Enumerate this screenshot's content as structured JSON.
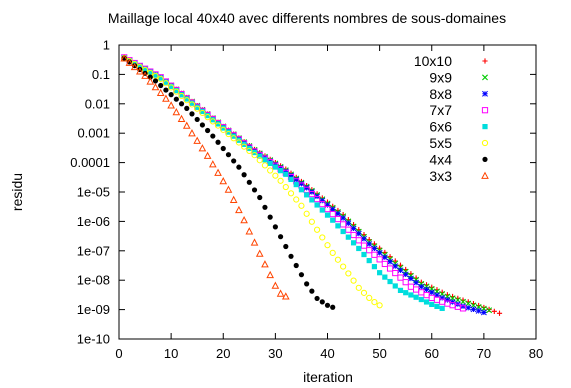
{
  "chart_data": {
    "type": "scatter",
    "title": "Maillage local 40x40 avec differents nombres de sous-domaines",
    "xlabel": "iteration",
    "ylabel": "residu",
    "xlim": [
      0,
      80
    ],
    "ylim": [
      1e-10,
      1
    ],
    "yscale": "log",
    "x_ticks": [
      "0",
      "10",
      "20",
      "30",
      "40",
      "50",
      "60",
      "70",
      "80"
    ],
    "y_ticks": [
      "1e-10",
      "1e-09",
      "1e-08",
      "1e-07",
      "1e-06",
      "1e-05",
      "0.0001",
      "0.001",
      "0.01",
      "0.1",
      "1"
    ],
    "grid": false,
    "legend_position": "top-right",
    "series": [
      {
        "name": "10x10",
        "color": "#ff0000",
        "marker": "plus",
        "points": [
          [
            1,
            0.38
          ],
          [
            8,
            0.08
          ],
          [
            14,
            0.012
          ],
          [
            20,
            0.0017
          ],
          [
            26,
            0.00028
          ],
          [
            32,
            6e-05
          ],
          [
            37,
            1.2e-05
          ],
          [
            43,
            1.7e-06
          ],
          [
            48,
            2.4e-07
          ],
          [
            53,
            4.5e-08
          ],
          [
            58,
            8.5e-09
          ],
          [
            63,
            3.2e-09
          ],
          [
            68,
            1.6e-09
          ],
          [
            73,
            7.5e-10
          ]
        ]
      },
      {
        "name": "9x9",
        "color": "#00cc00",
        "marker": "x",
        "points": [
          [
            1,
            0.38
          ],
          [
            8,
            0.08
          ],
          [
            14,
            0.012
          ],
          [
            20,
            0.0017
          ],
          [
            26,
            0.00027
          ],
          [
            32,
            5.5e-05
          ],
          [
            37,
            1.1e-05
          ],
          [
            43,
            1.5e-06
          ],
          [
            48,
            2e-07
          ],
          [
            53,
            3.7e-08
          ],
          [
            58,
            7.5e-09
          ],
          [
            63,
            2.8e-09
          ],
          [
            68,
            1.4e-09
          ],
          [
            71,
            9.5e-10
          ]
        ]
      },
      {
        "name": "8x8",
        "color": "#0000ff",
        "marker": "star",
        "points": [
          [
            1,
            0.38
          ],
          [
            8,
            0.08
          ],
          [
            14,
            0.011
          ],
          [
            20,
            0.0016
          ],
          [
            26,
            0.00025
          ],
          [
            32,
            5e-05
          ],
          [
            37,
            1e-05
          ],
          [
            43,
            1.3e-06
          ],
          [
            48,
            1.7e-07
          ],
          [
            53,
            3e-08
          ],
          [
            58,
            6e-09
          ],
          [
            62,
            2.5e-09
          ],
          [
            66,
            1.3e-09
          ],
          [
            70,
            8e-10
          ]
        ]
      },
      {
        "name": "7x7",
        "color": "#ff00ff",
        "marker": "square",
        "points": [
          [
            1,
            0.38
          ],
          [
            8,
            0.08
          ],
          [
            14,
            0.011
          ],
          [
            20,
            0.0016
          ],
          [
            26,
            0.00024
          ],
          [
            32,
            4.5e-05
          ],
          [
            37,
            8.5e-06
          ],
          [
            42,
            1.2e-06
          ],
          [
            47,
            1.5e-07
          ],
          [
            52,
            2.5e-08
          ],
          [
            56,
            6e-09
          ],
          [
            60,
            2.5e-09
          ],
          [
            63,
            1.6e-09
          ],
          [
            66,
            1.1e-09
          ]
        ]
      },
      {
        "name": "6x6",
        "color": "#00dddd",
        "marker": "filled-square",
        "points": [
          [
            1,
            0.37
          ],
          [
            8,
            0.075
          ],
          [
            14,
            0.0105
          ],
          [
            20,
            0.0015
          ],
          [
            26,
            0.00022
          ],
          [
            32,
            4e-05
          ],
          [
            36,
            8e-06
          ],
          [
            41,
            1.1e-06
          ],
          [
            46,
            1.2e-07
          ],
          [
            50,
            1.8e-08
          ],
          [
            54,
            4.5e-09
          ],
          [
            58,
            2.2e-09
          ],
          [
            60,
            1.5e-09
          ],
          [
            62,
            1.1e-09
          ]
        ]
      },
      {
        "name": "5x5",
        "color": "#ffff00",
        "marker": "circle",
        "points": [
          [
            1,
            0.36
          ],
          [
            8,
            0.07
          ],
          [
            14,
            0.0095
          ],
          [
            20,
            0.0013
          ],
          [
            26,
            0.00018
          ],
          [
            31,
            2.4e-05
          ],
          [
            35,
            3.4e-06
          ],
          [
            38,
            5.2e-07
          ],
          [
            41,
            8.5e-08
          ],
          [
            44,
            1.7e-08
          ],
          [
            46,
            5.5e-09
          ],
          [
            48,
            2.5e-09
          ],
          [
            49,
            1.8e-09
          ],
          [
            50,
            1.4e-09
          ]
        ]
      },
      {
        "name": "4x4",
        "color": "#000000",
        "marker": "filled-circle",
        "points": [
          [
            1,
            0.36
          ],
          [
            7,
            0.06
          ],
          [
            13,
            0.007
          ],
          [
            18,
            0.0008
          ],
          [
            23,
            7e-05
          ],
          [
            27,
            6.5e-06
          ],
          [
            30,
            6.5e-07
          ],
          [
            33,
            6.5e-08
          ],
          [
            36,
            7.5e-09
          ],
          [
            38,
            2.4e-09
          ],
          [
            40,
            1.4e-09
          ],
          [
            41,
            1.2e-09
          ]
        ]
      },
      {
        "name": "3x3",
        "color": "#ff4400",
        "marker": "triangle",
        "points": [
          [
            1,
            0.35
          ],
          [
            5,
            0.09
          ],
          [
            9,
            0.015
          ],
          [
            13,
            0.0018
          ],
          [
            17,
            0.00017
          ],
          [
            21,
            1.2e-05
          ],
          [
            24,
            1.1e-06
          ],
          [
            27,
            8e-08
          ],
          [
            30,
            6.5e-09
          ],
          [
            31,
            3.5e-09
          ],
          [
            32,
            2.8e-09
          ]
        ]
      }
    ]
  }
}
